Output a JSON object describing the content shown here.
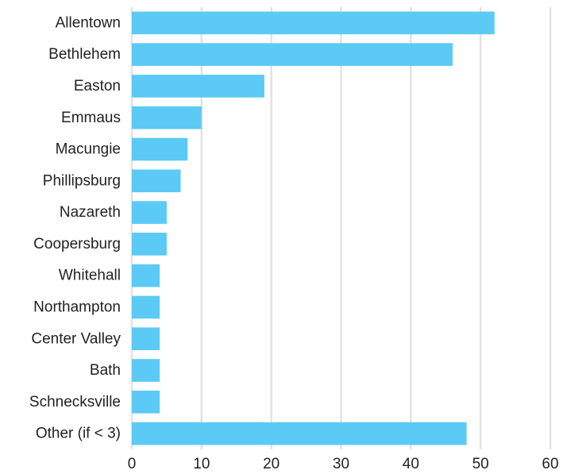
{
  "chart_data": {
    "type": "bar",
    "orientation": "horizontal",
    "title": "",
    "xlabel": "",
    "ylabel": "",
    "categories": [
      "Allentown",
      "Bethlehem",
      "Easton",
      "Emmaus",
      "Macungie",
      "Phillipsburg",
      "Nazareth",
      "Coopersburg",
      "Whitehall",
      "Northampton",
      "Center Valley",
      "Bath",
      "Schnecksville",
      "Other (if < 3)"
    ],
    "values": [
      52,
      46,
      19,
      10,
      8,
      7,
      5,
      5,
      4,
      4,
      4,
      4,
      4,
      48
    ],
    "xlim": [
      0,
      60
    ],
    "xticks": [
      0,
      10,
      20,
      30,
      40,
      50,
      60
    ],
    "xtick_labels": [
      "0",
      "10",
      "20",
      "30",
      "40",
      "50",
      "60"
    ],
    "grid": "vertical",
    "legend": "none",
    "colors": {
      "bar": "#5BCAF5",
      "grid": "#e2e2e2",
      "text": "#222222"
    }
  }
}
